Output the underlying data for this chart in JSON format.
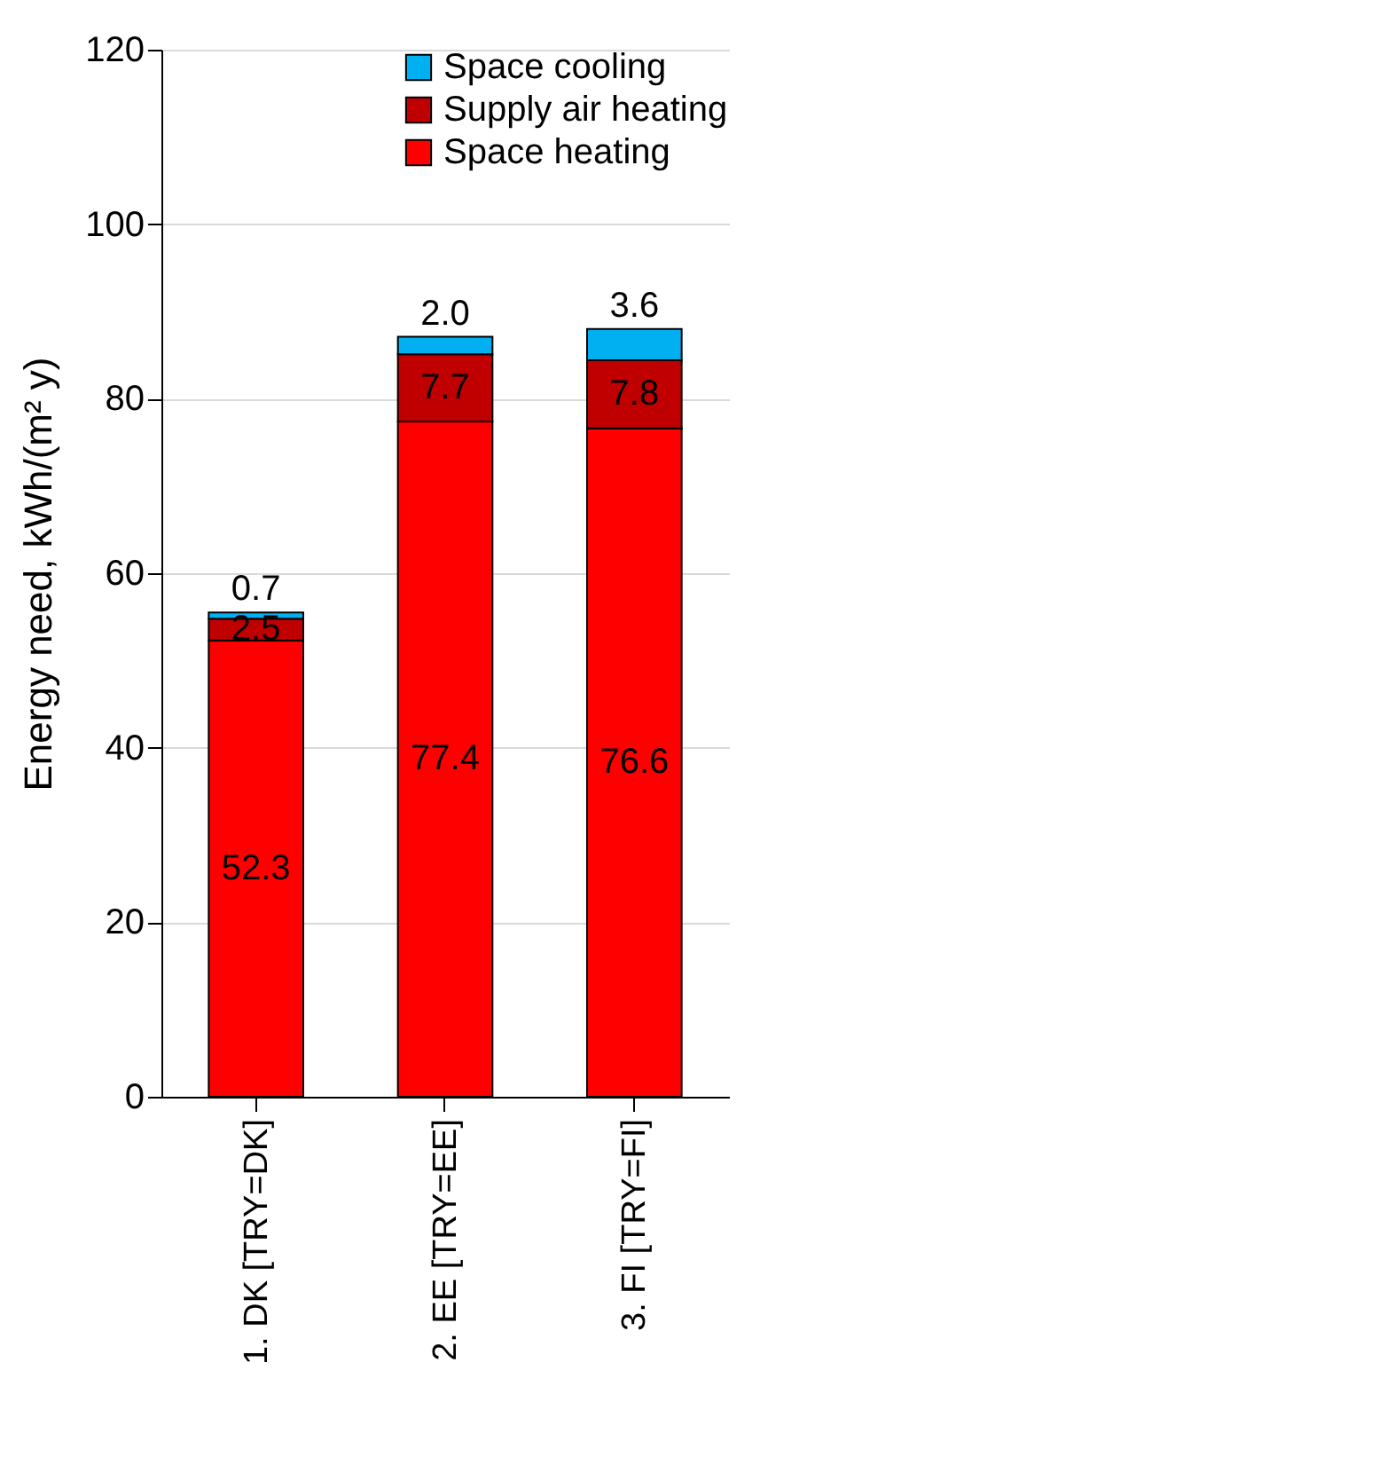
{
  "chart_data": {
    "type": "bar",
    "stacked": true,
    "ylabel": "Energy need, kWh/(m² y)",
    "categories": [
      "1. DK [TRY=DK]",
      "2. EE [TRY=EE]",
      "3. FI [TRY=FI]"
    ],
    "series": [
      {
        "name": "Space heating",
        "color": "#ff0000",
        "values": [
          52.3,
          77.4,
          76.6
        ],
        "value_labels": [
          "52.3",
          "77.4",
          "76.6"
        ]
      },
      {
        "name": "Supply air heating",
        "color": "#c00000",
        "values": [
          2.5,
          7.7,
          7.8
        ],
        "value_labels": [
          "2.5",
          "7.7",
          "7.8"
        ]
      },
      {
        "name": "Space cooling",
        "color": "#00b0f0",
        "values": [
          0.7,
          2.0,
          3.6
        ],
        "value_labels": [
          "0.7",
          "2.0",
          "3.6"
        ]
      }
    ],
    "ylim": [
      0,
      120
    ],
    "yticks": [
      0,
      20,
      40,
      60,
      80,
      100,
      120
    ],
    "grid": "y",
    "legend": "top right"
  }
}
